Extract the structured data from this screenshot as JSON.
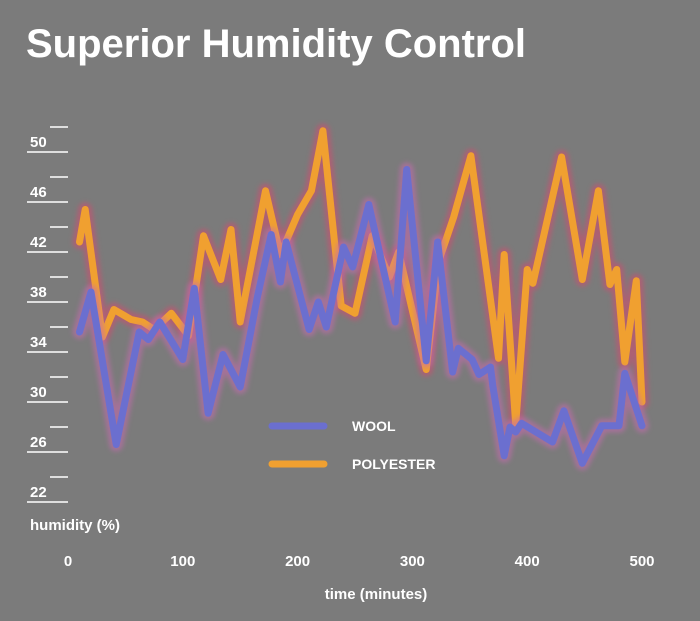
{
  "chart_data": {
    "type": "line",
    "title": "Superior Humidity Control",
    "xlabel": "time (minutes)",
    "ylabel": "humidity (%)",
    "xlim": [
      0,
      500
    ],
    "ylim": [
      22,
      52
    ],
    "x_ticks": [
      0,
      100,
      200,
      300,
      400,
      500
    ],
    "y_ticks": [
      22,
      26,
      30,
      34,
      38,
      42,
      46,
      50
    ],
    "legend_position": "center",
    "series": [
      {
        "name": "WOOL",
        "color": "#6b6fcf",
        "glow": "#c66bb0",
        "points": [
          [
            10,
            34.8
          ],
          [
            20,
            38.0
          ],
          [
            42,
            25.8
          ],
          [
            62,
            34.8
          ],
          [
            70,
            34.2
          ],
          [
            80,
            35.6
          ],
          [
            100,
            32.6
          ],
          [
            110,
            38.3
          ],
          [
            122,
            28.3
          ],
          [
            135,
            33.0
          ],
          [
            150,
            30.4
          ],
          [
            165,
            37.6
          ],
          [
            177,
            42.6
          ],
          [
            185,
            38.8
          ],
          [
            190,
            42.0
          ],
          [
            210,
            35.0
          ],
          [
            218,
            37.2
          ],
          [
            225,
            35.2
          ],
          [
            240,
            41.6
          ],
          [
            248,
            40.0
          ],
          [
            262,
            45.0
          ],
          [
            285,
            35.6
          ],
          [
            295,
            47.8
          ],
          [
            312,
            32.5
          ],
          [
            322,
            42.0
          ],
          [
            335,
            31.6
          ],
          [
            340,
            33.5
          ],
          [
            352,
            32.6
          ],
          [
            358,
            31.4
          ],
          [
            368,
            32.0
          ],
          [
            370,
            30.5
          ],
          [
            380,
            24.9
          ],
          [
            385,
            27.2
          ],
          [
            390,
            26.8
          ],
          [
            395,
            27.5
          ],
          [
            422,
            26.0
          ],
          [
            432,
            28.5
          ],
          [
            448,
            24.3
          ],
          [
            465,
            27.3
          ],
          [
            480,
            27.3
          ],
          [
            485,
            31.5
          ],
          [
            500,
            27.3
          ]
        ]
      },
      {
        "name": "POLYESTER",
        "color": "#f0a030",
        "glow": "#d44c6e",
        "points": [
          [
            10,
            42.0
          ],
          [
            15,
            44.6
          ],
          [
            30,
            34.4
          ],
          [
            40,
            36.6
          ],
          [
            55,
            35.8
          ],
          [
            65,
            35.6
          ],
          [
            75,
            35.0
          ],
          [
            90,
            36.3
          ],
          [
            105,
            34.5
          ],
          [
            118,
            42.5
          ],
          [
            133,
            39.0
          ],
          [
            142,
            43.0
          ],
          [
            150,
            35.6
          ],
          [
            172,
            46.1
          ],
          [
            185,
            41.0
          ],
          [
            200,
            44.2
          ],
          [
            212,
            46.1
          ],
          [
            222,
            50.9
          ],
          [
            238,
            36.9
          ],
          [
            250,
            36.3
          ],
          [
            265,
            42.5
          ],
          [
            280,
            39.2
          ],
          [
            288,
            41.2
          ],
          [
            312,
            31.8
          ],
          [
            323,
            40.5
          ],
          [
            336,
            44.0
          ],
          [
            351,
            48.9
          ],
          [
            375,
            32.7
          ],
          [
            380,
            41.0
          ],
          [
            390,
            27.4
          ],
          [
            400,
            39.8
          ],
          [
            405,
            38.7
          ],
          [
            430,
            48.8
          ],
          [
            448,
            39.0
          ],
          [
            462,
            46.1
          ],
          [
            472,
            38.6
          ],
          [
            478,
            39.8
          ],
          [
            485,
            32.4
          ],
          [
            495,
            38.9
          ],
          [
            500,
            29.2
          ]
        ]
      }
    ]
  }
}
